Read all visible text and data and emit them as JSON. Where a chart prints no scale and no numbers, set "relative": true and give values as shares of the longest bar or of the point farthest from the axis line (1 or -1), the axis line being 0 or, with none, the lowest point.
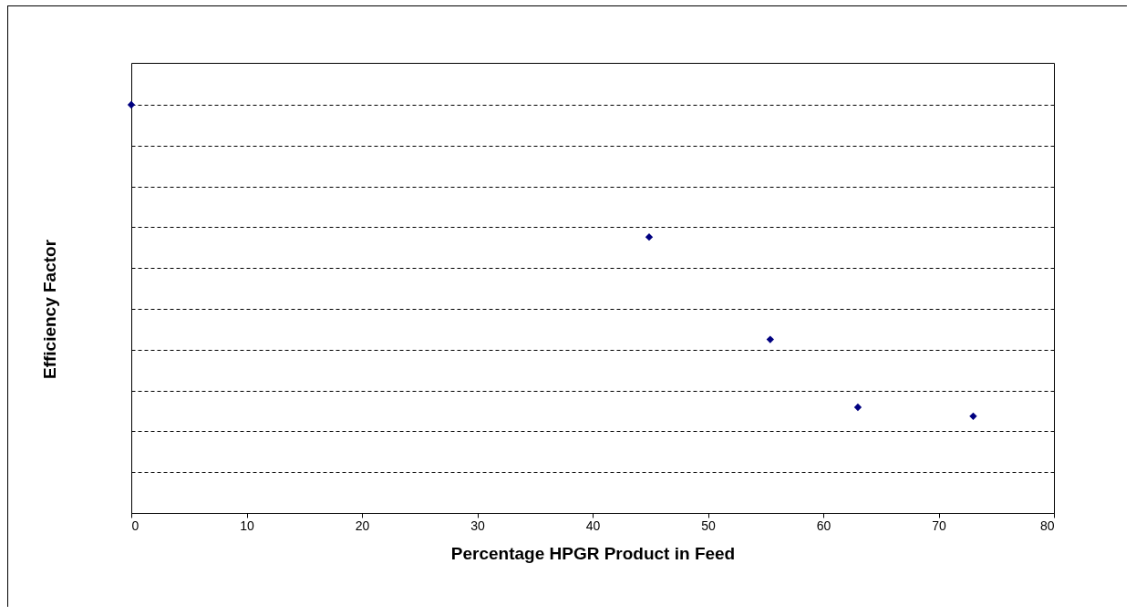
{
  "chart_data": {
    "type": "scatter",
    "xlabel": "Percentage HPGR Product in Feed",
    "ylabel": "Efficiency Factor",
    "x": [
      0,
      44.9,
      55.4,
      63.0,
      73.0
    ],
    "series": [
      {
        "color": "#000080",
        "values": [
          1,
          0.676,
          0.425,
          0.259,
          0.237
        ]
      }
    ],
    "relative": true,
    "xlim": [
      0,
      80
    ],
    "xticks": [
      0,
      10,
      20,
      30,
      40,
      50,
      60,
      70,
      80
    ],
    "grid": "y",
    "marker": "diamond"
  }
}
